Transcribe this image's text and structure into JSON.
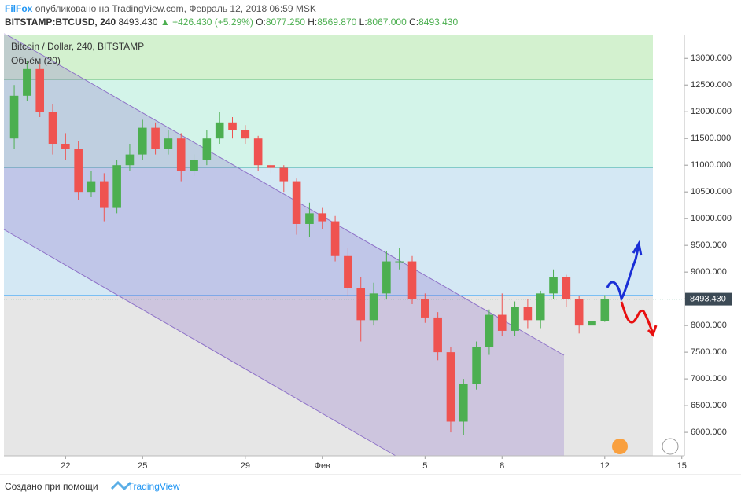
{
  "header": {
    "author": "FilFox",
    "published": "опубликовано на TradingView.com, Февраль 12, 2018 06:59 MSK",
    "symbol": "BITSTAMP:BTCUSD, 240",
    "last": "8493.430",
    "change": "▲ +426.430 (+5.29%)",
    "ohlc": [
      {
        "key": "O:",
        "value": "8077.250"
      },
      {
        "key": "H:",
        "value": "8569.870"
      },
      {
        "key": "L:",
        "value": "8067.000"
      },
      {
        "key": "C:",
        "value": "8493.430"
      }
    ]
  },
  "footer": {
    "created": "Создано при помощи",
    "brand": "TradingView"
  },
  "chart_data": {
    "type": "candlestick",
    "volume_label": "Объём (20)",
    "xlim": [
      19.6,
      46.1
    ],
    "xticks": [
      22,
      25,
      29,
      {
        "value": 32,
        "label": "Фев"
      },
      {
        "value": 36,
        "label": "5"
      },
      {
        "value": 39,
        "label": "8"
      },
      {
        "value": 43,
        "label": "12"
      },
      {
        "value": 46,
        "label": "15"
      }
    ],
    "ylim": [
      5560,
      13430
    ],
    "yticks": [
      {
        "value": 6000,
        "label": "6000.000"
      },
      {
        "value": 6500,
        "label": "6500.000"
      },
      {
        "value": 7000,
        "label": "7000.000"
      },
      {
        "value": 7500,
        "label": "7500.000"
      },
      {
        "value": 8000,
        "label": "8000.000"
      },
      {
        "value": 8500,
        "label": "8500.000"
      },
      {
        "value": 9000,
        "label": "9000.000"
      },
      {
        "value": 9500,
        "label": "9500.000"
      },
      {
        "value": 10000,
        "label": "10000.000"
      },
      {
        "value": 10500,
        "label": "10500.000"
      },
      {
        "value": 11000,
        "label": "11000.000"
      },
      {
        "value": 11500,
        "label": "11500.000"
      },
      {
        "value": 12000,
        "label": "12000.000"
      },
      {
        "value": 12500,
        "label": "12500.000"
      },
      {
        "value": 13000,
        "label": "13000.000"
      }
    ],
    "levels": [
      {
        "value": 12600,
        "color": "#4caf50",
        "fill": "#d3f1cf"
      },
      {
        "value": 10950,
        "color": "#26a69a",
        "fill": "#d3f4e9"
      },
      {
        "value": 8560,
        "color": "#2196f3",
        "fill": "#d4e8f4"
      }
    ],
    "last_price": {
      "value": 8493.43,
      "label": "8493.430"
    },
    "series": [
      {
        "name": "Bitcoin / Dollar, 240, BITSTAMP",
        "up_color": "#4caf50",
        "down_color": "#ef5350",
        "x": [
          20,
          20.5,
          21,
          21.5,
          22,
          22.5,
          23,
          23.5,
          24,
          24.5,
          25,
          25.5,
          26,
          26.5,
          27,
          27.5,
          28,
          28.5,
          29,
          29.5,
          30,
          30.5,
          31,
          31.5,
          32,
          32.5,
          33,
          33.5,
          34,
          34.5,
          35,
          35.5,
          36,
          36.5,
          37,
          37.5,
          38,
          38.5,
          39,
          39.5,
          40,
          40.5,
          41,
          41.5,
          42,
          42.5,
          43
        ],
        "open": [
          11500,
          12300,
          12800,
          12000,
          11400,
          11300,
          10500,
          10700,
          10200,
          11000,
          11200,
          11700,
          11300,
          11500,
          10900,
          11100,
          11500,
          11800,
          11650,
          11500,
          11000,
          10950,
          10700,
          9900,
          10100,
          9950,
          9300,
          8700,
          8100,
          8600,
          9200,
          9200,
          8500,
          8150,
          7500,
          6200,
          6900,
          7600,
          8200,
          7900,
          8350,
          8100,
          8600,
          8900,
          8500,
          8000,
          8077.25
        ],
        "high": [
          12500,
          12950,
          12900,
          12150,
          11600,
          11450,
          10900,
          10850,
          11100,
          11400,
          11850,
          11800,
          11650,
          11600,
          11200,
          11650,
          12000,
          11900,
          11750,
          11550,
          11100,
          11000,
          10750,
          10300,
          10200,
          10050,
          9450,
          8900,
          8800,
          9400,
          9450,
          9300,
          8600,
          8250,
          7600,
          7000,
          7700,
          8300,
          8600,
          8450,
          8500,
          8650,
          9050,
          8950,
          8550,
          8400,
          8569.87
        ],
        "low": [
          11300,
          12200,
          11900,
          11200,
          11100,
          10350,
          10400,
          9950,
          10100,
          10900,
          11100,
          11200,
          11200,
          10700,
          10800,
          11000,
          11400,
          11500,
          11400,
          10900,
          10850,
          10500,
          9700,
          9650,
          9800,
          9200,
          8550,
          7700,
          8000,
          8500,
          9050,
          8400,
          8050,
          7350,
          6000,
          5950,
          6800,
          7450,
          7800,
          7800,
          7950,
          7950,
          8500,
          8350,
          7850,
          7900,
          8067.0
        ],
        "close": [
          12300,
          12800,
          12000,
          11400,
          11300,
          10500,
          10700,
          10200,
          11000,
          11200,
          11700,
          11300,
          11500,
          10900,
          11100,
          11500,
          11800,
          11650,
          11500,
          11000,
          10950,
          10700,
          9900,
          10100,
          9950,
          9300,
          8700,
          8100,
          8600,
          9200,
          9200,
          8500,
          8150,
          7500,
          6200,
          6900,
          7600,
          8200,
          7900,
          8350,
          8100,
          8600,
          8900,
          8500,
          8000,
          8077.25,
          8493.43
        ]
      }
    ]
  }
}
